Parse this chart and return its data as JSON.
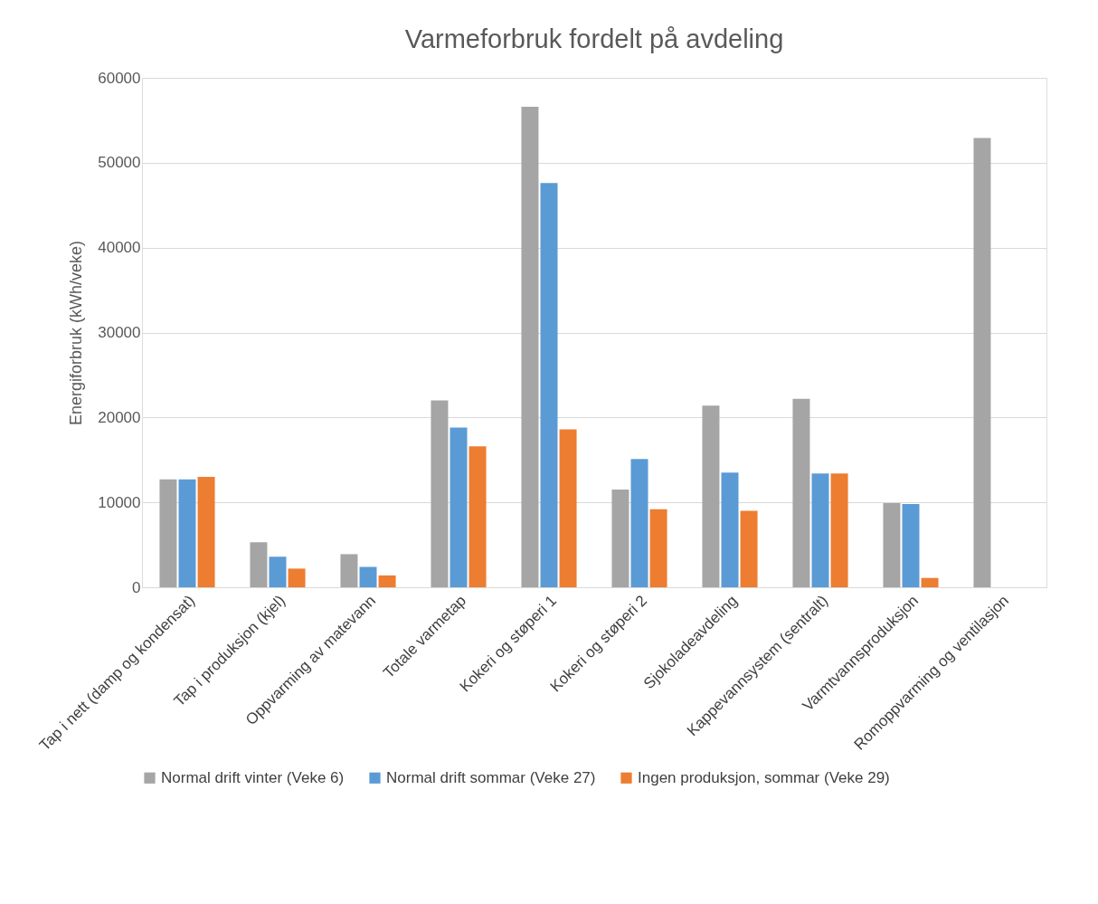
{
  "chart_data": {
    "type": "bar",
    "title": "Varmeforbruk fordelt på avdeling",
    "ylabel": "Energiforbruk (kWh/veke)",
    "categories": [
      "Tap i nett (damp og kondensat)",
      "Tap i produksjon (kjel)",
      "Oppvarming av matevann",
      "Totale varmetap",
      "Kokeri og støperi 1",
      "Kokeri og støperi 2",
      "Sjokoladeavdeling",
      "Kappevannsystem (sentralt)",
      "Varmtvannsproduksjon",
      "Romoppvarming og ventilasjon"
    ],
    "series": [
      {
        "name": "Normal drift vinter (Veke 6)",
        "color": "#a5a5a5",
        "values": [
          12700,
          5300,
          3900,
          22000,
          56600,
          11500,
          21400,
          22200,
          9900,
          52900
        ]
      },
      {
        "name": "Normal drift sommar (Veke 27)",
        "color": "#5b9bd5",
        "values": [
          12700,
          3600,
          2400,
          18800,
          47600,
          15100,
          13500,
          13400,
          9800,
          null
        ]
      },
      {
        "name": "Ingen produksjon, sommar (Veke 29)",
        "color": "#ed7d31",
        "values": [
          13000,
          2200,
          1400,
          16600,
          18600,
          9200,
          9000,
          13400,
          1100,
          null
        ]
      }
    ],
    "ylim": [
      0,
      60000
    ],
    "yticks": [
      0,
      10000,
      20000,
      30000,
      40000,
      50000,
      60000
    ],
    "grid": "y",
    "legend": "bottom"
  }
}
